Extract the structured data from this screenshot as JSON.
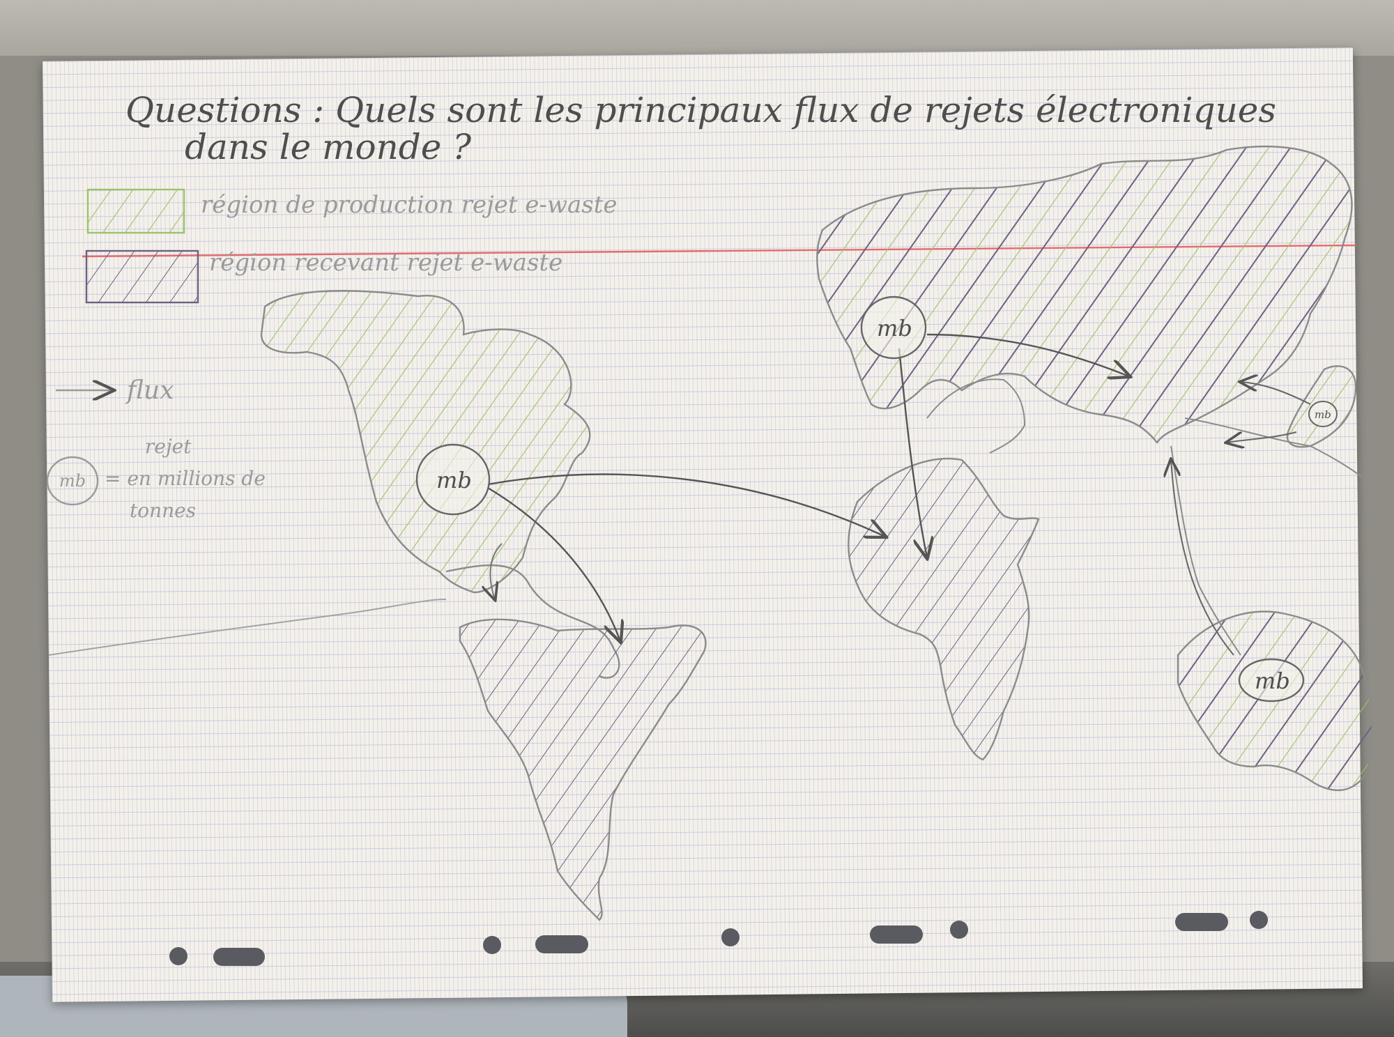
{
  "question": {
    "line1": "Questions : Quels sont les principaux flux de rejets électroniques",
    "line2": "dans le monde ?"
  },
  "legend": {
    "production": "région de production rejet e-waste",
    "receiving": "région recevant rejet e-waste",
    "flux": "flux",
    "marker": "mb",
    "marker_def_1": "rejet",
    "marker_def_2": "= en millions de",
    "marker_def_3": "tonnes"
  },
  "map": {
    "marker_label": "mb"
  },
  "colors": {
    "production_hatch": "#9cc36a",
    "receiving_hatch": "#6f6080",
    "pencil": "#7c7c7c",
    "margin_line": "#e56a6a"
  }
}
